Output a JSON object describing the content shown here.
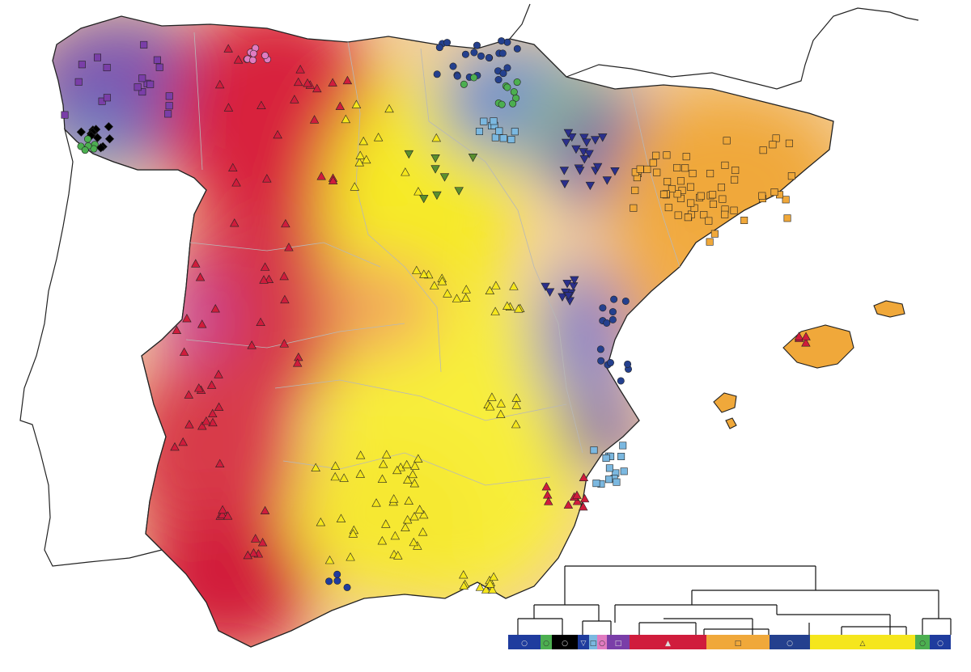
{
  "figure": {
    "kind": "cluster map with dendrogram",
    "coastline_color": "#222222",
    "region_border_color": "#b8b8b8"
  },
  "clusters": [
    {
      "id": "c1",
      "color": "#1f3c9e",
      "marker": "circle"
    },
    {
      "id": "c2",
      "color": "#4caf50",
      "marker": "circle"
    },
    {
      "id": "c3",
      "color": "#000000",
      "marker": "diamond"
    },
    {
      "id": "c4",
      "color": "#7bb8e0",
      "marker": "square"
    },
    {
      "id": "c5",
      "color": "#e07bc0",
      "marker": "circle"
    },
    {
      "id": "c6",
      "color": "#7a3ea8",
      "marker": "square"
    },
    {
      "id": "c7",
      "color": "#d01c3c",
      "marker": "triangle-up"
    },
    {
      "id": "c8",
      "color": "#f0a83a",
      "marker": "square"
    },
    {
      "id": "c9",
      "color": "#2a2f8c",
      "marker": "triangle-down"
    },
    {
      "id": "c10",
      "color": "#f5e61c",
      "marker": "triangle-up"
    },
    {
      "id": "c11",
      "color": "#5a8f2e",
      "marker": "triangle-down"
    },
    {
      "id": "c12",
      "color": "#24408e",
      "marker": "circle"
    }
  ],
  "legend_bar": {
    "segments": [
      {
        "color": "#1f3c9e",
        "symbol": "○"
      },
      {
        "color": "#4caf50",
        "symbol": "○"
      },
      {
        "color": "#000000",
        "symbol": "○"
      },
      {
        "color": "#1f3c9e",
        "symbol": "▽"
      },
      {
        "color": "#7bb8e0",
        "symbol": "□"
      },
      {
        "color": "#e07bc0",
        "symbol": "○"
      },
      {
        "color": "#7a3ea8",
        "symbol": "□"
      },
      {
        "color": "#d01c3c",
        "symbol": "▲"
      },
      {
        "color": "#f0a83a",
        "symbol": "□"
      },
      {
        "color": "#24408e",
        "symbol": "○"
      },
      {
        "color": "#f5e61c",
        "symbol": "△"
      },
      {
        "color": "#4caf50",
        "symbol": "○"
      },
      {
        "color": "#1f3c9e",
        "symbol": "○"
      }
    ]
  }
}
